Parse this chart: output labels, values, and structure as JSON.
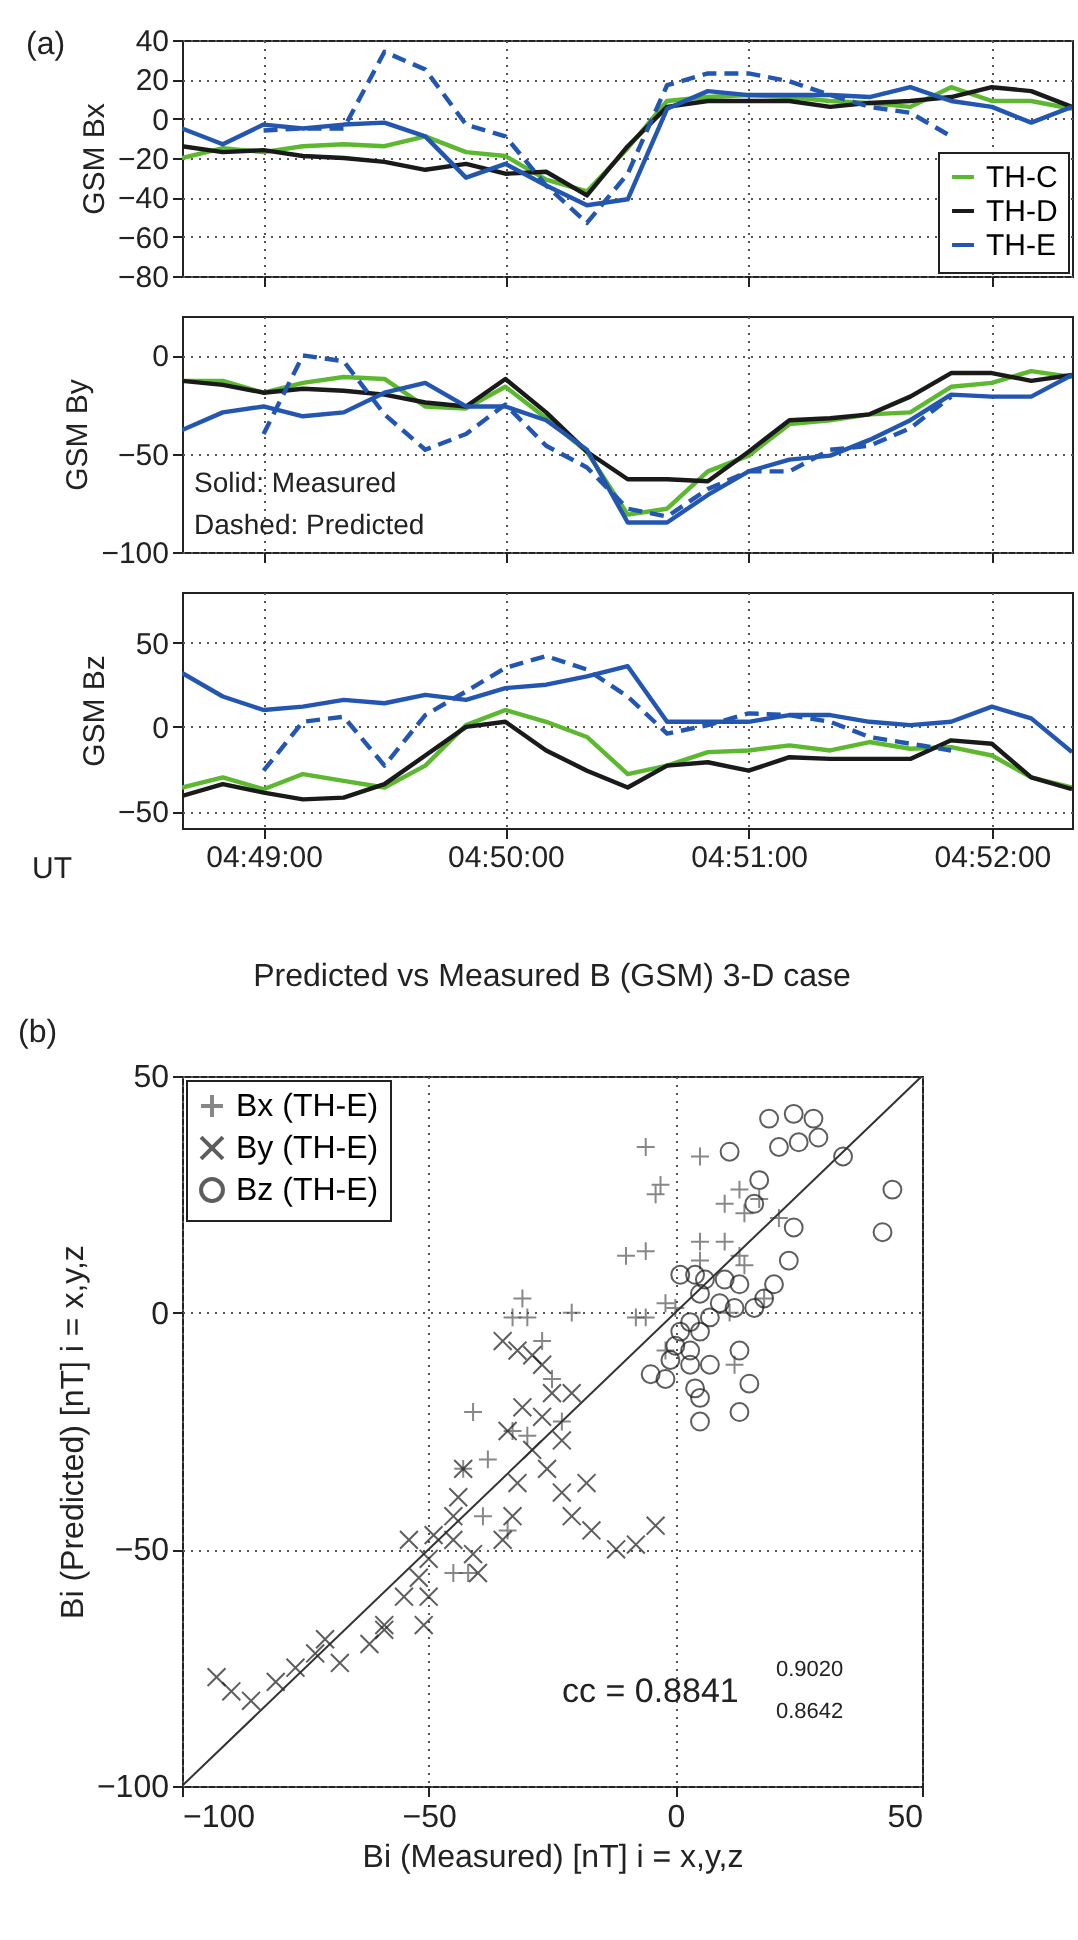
{
  "chart_data": [
    {
      "type": "line",
      "ylabel": "GSM Bx",
      "annotations": [
        "(a)"
      ],
      "xlim": [
        4.8111,
        4.8722
      ],
      "xticks": [
        4.8167,
        4.8333,
        4.85,
        4.8667
      ],
      "ylim": [
        -80,
        40
      ],
      "yticks": [
        -80,
        -60,
        -40,
        -20,
        0,
        20,
        40
      ],
      "grid": true,
      "legend": "bottom right",
      "tick_labels": "y",
      "x": [
        4.8111,
        4.8139,
        4.8167,
        4.8194,
        4.8222,
        4.825,
        4.8278,
        4.8306,
        4.8333,
        4.8361,
        4.8389,
        4.8417,
        4.8444,
        4.8472,
        4.85,
        4.8528,
        4.8556,
        4.8583,
        4.8611,
        4.8639,
        4.8667,
        4.8694,
        4.8722
      ],
      "series": [
        {
          "name": "TH-C",
          "color": "#5cb82f",
          "line_style": "solid",
          "values": [
            -20,
            -15,
            -17,
            -14,
            -13,
            -14,
            -9,
            -17,
            -19,
            -31,
            -37,
            -15,
            9,
            11,
            12,
            11,
            9,
            8,
            6,
            16,
            9,
            9,
            5
          ]
        },
        {
          "name": "TH-D",
          "color": "#1a1a1a",
          "line_style": "solid",
          "values": [
            -14,
            -17,
            -16,
            -19,
            -20,
            -22,
            -26,
            -23,
            -28,
            -27,
            -39,
            -14,
            6,
            9,
            9,
            9,
            6,
            8,
            9,
            11,
            16,
            14,
            6
          ]
        },
        {
          "name": "TH-E",
          "color": "#2356b0",
          "line_style": "solid",
          "values": [
            -5,
            -13,
            -3,
            -5,
            -3,
            -2,
            -9,
            -30,
            -23,
            -34,
            -44,
            -41,
            5,
            14,
            12,
            12,
            12,
            11,
            16,
            9,
            6,
            -2,
            6
          ]
        },
        {
          "color": "#2356b0",
          "line_style": "dashed",
          "values": [
            null,
            null,
            -6,
            -5,
            -5,
            34,
            25,
            -3,
            -9,
            -34,
            -53,
            -28,
            17,
            23,
            23,
            19,
            12,
            6,
            3,
            -9,
            null,
            null,
            null
          ]
        }
      ]
    },
    {
      "type": "line",
      "ylabel": "GSM By",
      "annotations": [
        "Solid: Measured",
        "Dashed: Predicted"
      ],
      "xlim": [
        4.8111,
        4.8722
      ],
      "xticks": [
        4.8167,
        4.8333,
        4.85,
        4.8667
      ],
      "ylim": [
        -100,
        20
      ],
      "yticks": [
        -100,
        -50,
        0
      ],
      "grid": true,
      "tick_labels": "y",
      "x": [
        4.8111,
        4.8139,
        4.8167,
        4.8194,
        4.8222,
        4.825,
        4.8278,
        4.8306,
        4.8333,
        4.8361,
        4.8389,
        4.8417,
        4.8444,
        4.8472,
        4.85,
        4.8528,
        4.8556,
        4.8583,
        4.8611,
        4.8639,
        4.8667,
        4.8694,
        4.8722
      ],
      "series": [
        {
          "color": "#5cb82f",
          "line_style": "solid",
          "values": [
            -13,
            -13,
            -19,
            -14,
            -11,
            -12,
            -26,
            -27,
            -16,
            -32,
            -49,
            -81,
            -78,
            -59,
            -51,
            -35,
            -33,
            -30,
            -29,
            -16,
            -14,
            -8,
            -11
          ]
        },
        {
          "color": "#1a1a1a",
          "line_style": "solid",
          "values": [
            -13,
            -15,
            -19,
            -17,
            -18,
            -20,
            -24,
            -26,
            -12,
            -29,
            -49,
            -63,
            -63,
            -64,
            -49,
            -33,
            -32,
            -30,
            -21,
            -9,
            -9,
            -13,
            -10
          ]
        },
        {
          "color": "#2356b0",
          "line_style": "solid",
          "values": [
            -38,
            -29,
            -26,
            -31,
            -29,
            -19,
            -14,
            -26,
            -26,
            -33,
            -48,
            -85,
            -85,
            -71,
            -59,
            -53,
            -51,
            -43,
            -33,
            -20,
            -21,
            -21,
            -10
          ]
        },
        {
          "color": "#2356b0",
          "line_style": "dashed",
          "values": [
            null,
            null,
            -40,
            0,
            -3,
            -30,
            -48,
            -40,
            -25,
            -46,
            -57,
            -78,
            -82,
            -68,
            -59,
            -59,
            -48,
            -46,
            -37,
            -21,
            null,
            null,
            null
          ]
        }
      ]
    },
    {
      "type": "line",
      "ylabel": "GSM Bz",
      "annotations": [
        "UT"
      ],
      "xlim": [
        4.8111,
        4.8722
      ],
      "xticks": [
        {
          "value": 4.8167,
          "label": "04:49:00"
        },
        {
          "value": 4.8333,
          "label": "04:50:00"
        },
        {
          "value": 4.85,
          "label": "04:51:00"
        },
        {
          "value": 4.8667,
          "label": "04:52:00"
        }
      ],
      "ylim": [
        -60,
        80
      ],
      "yticks": [
        -50,
        0,
        50
      ],
      "grid": true,
      "x": [
        4.8111,
        4.8139,
        4.8167,
        4.8194,
        4.8222,
        4.825,
        4.8278,
        4.8306,
        4.8333,
        4.8361,
        4.8389,
        4.8417,
        4.8444,
        4.8472,
        4.85,
        4.8528,
        4.8556,
        4.8583,
        4.8611,
        4.8639,
        4.8667,
        4.8694,
        4.8722
      ],
      "series": [
        {
          "color": "#5cb82f",
          "line_style": "solid",
          "values": [
            -36,
            -30,
            -37,
            -28,
            -32,
            -36,
            -23,
            1,
            10,
            3,
            -6,
            -28,
            -23,
            -15,
            -14,
            -11,
            -14,
            -9,
            -13,
            -12,
            -17,
            -30,
            -36
          ]
        },
        {
          "color": "#1a1a1a",
          "line_style": "solid",
          "values": [
            -41,
            -34,
            -39,
            -43,
            -42,
            -34,
            -17,
            0,
            3,
            -14,
            -26,
            -36,
            -23,
            -21,
            -26,
            -18,
            -19,
            -19,
            -19,
            -8,
            -10,
            -30,
            -37
          ]
        },
        {
          "color": "#2356b0",
          "line_style": "solid",
          "values": [
            32,
            18,
            10,
            12,
            16,
            14,
            19,
            16,
            23,
            25,
            30,
            36,
            3,
            3,
            3,
            7,
            7,
            3,
            1,
            3,
            12,
            5,
            -15
          ]
        },
        {
          "color": "#2356b0",
          "line_style": "dashed",
          "values": [
            null,
            null,
            -26,
            3,
            6,
            -23,
            7,
            21,
            35,
            42,
            34,
            18,
            -4,
            1,
            8,
            7,
            3,
            -6,
            -10,
            -14,
            null,
            null,
            null
          ]
        }
      ]
    },
    {
      "type": "scatter",
      "title": "Predicted vs Measured B (GSM)  3-D case",
      "xlabel": "Bi (Measured) [nT]  i = x,y,z",
      "ylabel": "Bi (Predicted) [nT]  i = x,y,z",
      "annotations": [
        "(b)",
        "cc = 0.8841",
        "0.9020",
        "0.8642"
      ],
      "xlim": [
        -100,
        50
      ],
      "xticks": [
        -100,
        -50,
        0,
        50
      ],
      "ylim": [
        -100,
        50
      ],
      "yticks": [
        -100,
        -50,
        0,
        50
      ],
      "grid": true,
      "legend": "top left",
      "series": [
        {
          "name": "Bx (TH-E)",
          "color": "#555555",
          "marker": "cross",
          "x": [
            -6,
            5,
            -3,
            -4,
            13,
            10,
            14,
            17,
            21,
            5,
            10,
            13,
            14,
            -10,
            -6,
            5,
            -2,
            0,
            -8,
            -6,
            -31,
            -33,
            -30,
            -21,
            -27,
            -25,
            -23,
            -41,
            -30,
            -33,
            -38,
            -43,
            -39,
            -34,
            -45,
            -42,
            12,
            -2,
            11,
            18
          ],
          "values": [
            35,
            33,
            27,
            25,
            26,
            23,
            21,
            24,
            20,
            15,
            15,
            12,
            10,
            12,
            13,
            11,
            2,
            1,
            -1,
            -1,
            3,
            -1,
            -1,
            0,
            -6,
            -14,
            -23,
            -21,
            -26,
            -25,
            -31,
            -33,
            -43,
            -46,
            -55,
            -55,
            -11,
            -8,
            0,
            3
          ]
        },
        {
          "name": "By (TH-E)",
          "color": "#1a1a1a",
          "marker": "x",
          "x": [
            -93,
            -90,
            -86,
            -81,
            -77,
            -73,
            -71,
            -68,
            -62,
            -59,
            -59,
            -55,
            -52,
            -50,
            -51,
            -50,
            -54,
            -49,
            -45,
            -45,
            -44,
            -41,
            -40,
            -35,
            -33,
            -32,
            -34,
            -31,
            -29,
            -27,
            -26,
            -23,
            -23,
            -25,
            -21,
            -18,
            -17,
            -21,
            -12,
            -8,
            -4,
            -35,
            -32,
            -29,
            -27,
            -43
          ],
          "values": [
            -77,
            -80,
            -82,
            -78,
            -75,
            -72,
            -69,
            -74,
            -70,
            -66,
            -67,
            -60,
            -56,
            -52,
            -66,
            -60,
            -48,
            -47,
            -48,
            -43,
            -39,
            -51,
            -55,
            -48,
            -43,
            -36,
            -25,
            -20,
            -29,
            -22,
            -33,
            -38,
            -27,
            -17,
            -17,
            -36,
            -46,
            -43,
            -50,
            -49,
            -45,
            -6,
            -8,
            -9,
            -11,
            -33
          ]
        },
        {
          "name": "Bz (TH-E)",
          "color": "#1a1a1a",
          "marker": "circle",
          "x": [
            19,
            24,
            28,
            29,
            25,
            21,
            11,
            34,
            17,
            44,
            42,
            24,
            23,
            20,
            18,
            16,
            16,
            1,
            4,
            6,
            10,
            13,
            5,
            9,
            12,
            3,
            7,
            1,
            5,
            0,
            3,
            7,
            -1,
            -5,
            -2,
            4,
            5,
            5,
            13,
            15,
            13,
            3
          ],
          "values": [
            41,
            42,
            41,
            37,
            36,
            35,
            34,
            33,
            28,
            26,
            17,
            18,
            11,
            6,
            3,
            1,
            23,
            8,
            8,
            7,
            7,
            6,
            4,
            2,
            1,
            -2,
            -1,
            -4,
            -4,
            -7,
            -8,
            -11,
            -10,
            -13,
            -14,
            -16,
            -18,
            -23,
            -8,
            -15,
            -21,
            -11
          ]
        },
        {
          "type": "line",
          "color": "#333333",
          "line_style": "solid",
          "x": [
            -100,
            50
          ],
          "values": [
            -100,
            50
          ]
        }
      ]
    }
  ]
}
